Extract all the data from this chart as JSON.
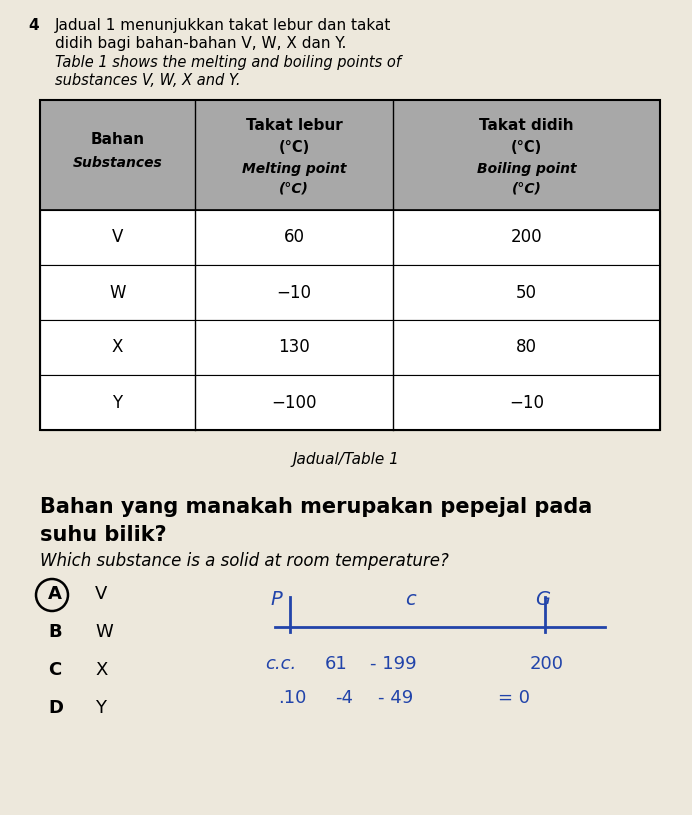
{
  "question_number": "4",
  "malay_line1": "Jadual 1 menunjukkan takat lebur dan takat",
  "malay_line2": "didih bagi bahan-bahan V, W, X dan Y.",
  "english_line1": "Table 1 shows the melting and boiling points of",
  "english_line2": "substances V, W, X and Y.",
  "table_caption": "Jadual/Table 1",
  "header_col1_line1": "Bahan",
  "header_col1_line2": "Substances",
  "header_col2_line1": "Takat lebur",
  "header_col2_line2": "(°C)",
  "header_col2_line3": "Melting point",
  "header_col2_line4": "(°C)",
  "header_col3_line1": "Takat didih",
  "header_col3_line2": "(°C)",
  "header_col3_line3": "Boiling point",
  "header_col3_line4": "(°C)",
  "rows": [
    [
      "V",
      "60",
      "200"
    ],
    [
      "W",
      "−10",
      "50"
    ],
    [
      "X",
      "130",
      "80"
    ],
    [
      "Y",
      "−100",
      "−10"
    ]
  ],
  "header_bg": "#a8a8a8",
  "cell_bg": "#ffffff",
  "malay_q_line1": "Bahan yang manakah merupakan pepejal pada",
  "malay_q_line2": "suhu bilik?",
  "english_q": "Which substance is a solid at room temperature?",
  "options": [
    [
      "A",
      "V"
    ],
    [
      "B",
      "W"
    ],
    [
      "C",
      "X"
    ],
    [
      "D",
      "Y"
    ]
  ],
  "bg_color": "#ede8dc",
  "handwrite_color": "#2244aa"
}
